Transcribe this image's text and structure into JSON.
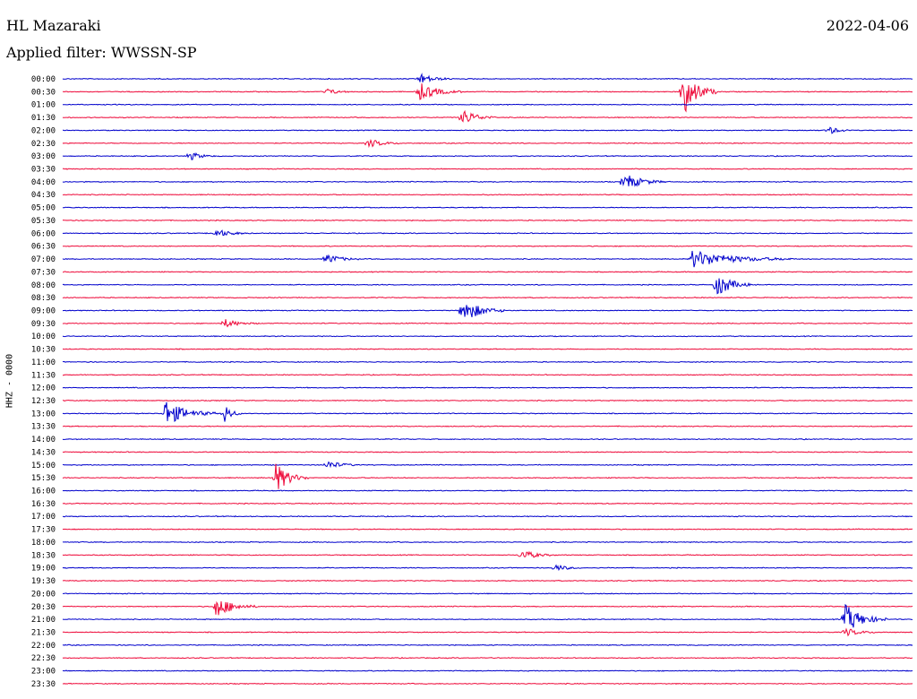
{
  "header": {
    "station": "HL Mazaraki",
    "filter": "Applied filter: WWSSN-SP",
    "date": "2022-04-06",
    "channel_label": "HHZ - 0000"
  },
  "colors": {
    "trace_a": "#0000cc",
    "trace_b": "#ee0a3a",
    "background": "#ffffff",
    "text": "#000000"
  },
  "chart_data": {
    "type": "line",
    "title": "HL Mazaraki",
    "subtitle": "Applied filter: WWSSN-SP",
    "ylabel": "HHZ - 0000",
    "date": "2022-04-06",
    "row_labels": [
      "00:00",
      "00:30",
      "01:00",
      "01:30",
      "02:00",
      "02:30",
      "03:00",
      "03:30",
      "04:00",
      "04:30",
      "05:00",
      "05:30",
      "06:00",
      "06:30",
      "07:00",
      "07:30",
      "08:00",
      "08:30",
      "09:00",
      "09:30",
      "10:00",
      "10:30",
      "11:00",
      "11:30",
      "12:00",
      "12:30",
      "13:00",
      "13:30",
      "14:00",
      "14:30",
      "15:00",
      "15:30",
      "16:00",
      "16:30",
      "17:00",
      "17:30",
      "18:00",
      "18:30",
      "19:00",
      "19:30",
      "20:00",
      "20:30",
      "21:00",
      "21:30",
      "22:00",
      "22:30",
      "23:00",
      "23:30"
    ],
    "row_minutes": 30,
    "row_color_cycle": [
      "trace_a",
      "trace_b"
    ],
    "noise_level": 0.08,
    "grid": false,
    "legend": "none",
    "events": [
      {
        "row": 0,
        "t": 0.42,
        "amp": 1.2,
        "dur": 0.04
      },
      {
        "row": 1,
        "t": 0.42,
        "amp": 2.0,
        "dur": 0.05
      },
      {
        "row": 1,
        "t": 0.73,
        "amp": 5.5,
        "dur": 0.04
      },
      {
        "row": 1,
        "t": 0.31,
        "amp": 0.8,
        "dur": 0.03
      },
      {
        "row": 3,
        "t": 0.47,
        "amp": 2.0,
        "dur": 0.04
      },
      {
        "row": 4,
        "t": 0.9,
        "amp": 1.0,
        "dur": 0.03
      },
      {
        "row": 5,
        "t": 0.36,
        "amp": 1.0,
        "dur": 0.04
      },
      {
        "row": 6,
        "t": 0.15,
        "amp": 1.0,
        "dur": 0.03
      },
      {
        "row": 8,
        "t": 0.66,
        "amp": 2.0,
        "dur": 0.05
      },
      {
        "row": 12,
        "t": 0.18,
        "amp": 1.0,
        "dur": 0.04
      },
      {
        "row": 14,
        "t": 0.31,
        "amp": 1.2,
        "dur": 0.04
      },
      {
        "row": 14,
        "t": 0.74,
        "amp": 2.0,
        "dur": 0.12
      },
      {
        "row": 16,
        "t": 0.77,
        "amp": 3.0,
        "dur": 0.04
      },
      {
        "row": 18,
        "t": 0.47,
        "amp": 3.0,
        "dur": 0.05
      },
      {
        "row": 19,
        "t": 0.19,
        "amp": 1.0,
        "dur": 0.04
      },
      {
        "row": 26,
        "t": 0.12,
        "amp": 3.0,
        "dur": 0.06
      },
      {
        "row": 26,
        "t": 0.19,
        "amp": 2.5,
        "dur": 0.02
      },
      {
        "row": 31,
        "t": 0.25,
        "amp": 3.5,
        "dur": 0.04
      },
      {
        "row": 30,
        "t": 0.31,
        "amp": 1.0,
        "dur": 0.04
      },
      {
        "row": 37,
        "t": 0.54,
        "amp": 1.2,
        "dur": 0.04
      },
      {
        "row": 38,
        "t": 0.58,
        "amp": 0.8,
        "dur": 0.03
      },
      {
        "row": 41,
        "t": 0.18,
        "amp": 2.5,
        "dur": 0.05
      },
      {
        "row": 42,
        "t": 0.92,
        "amp": 3.5,
        "dur": 0.05
      },
      {
        "row": 43,
        "t": 0.92,
        "amp": 1.0,
        "dur": 0.04
      }
    ]
  }
}
